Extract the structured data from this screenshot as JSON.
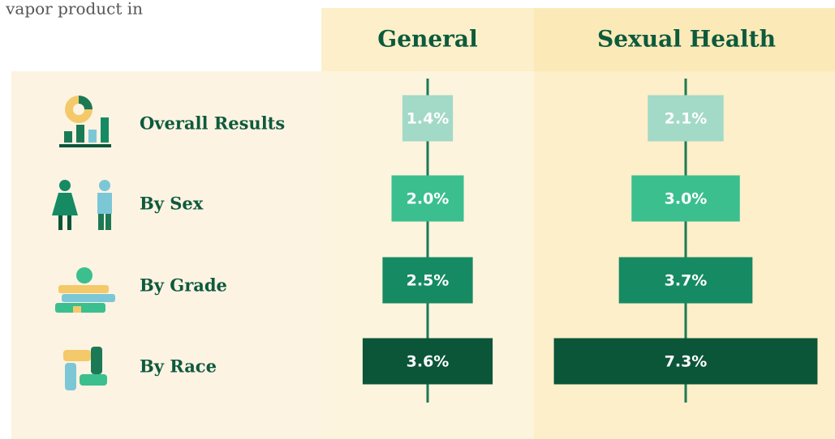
{
  "fragment": ": vapor product in",
  "chart_data": {
    "type": "bar",
    "categories": [
      "Overall Results",
      "By Sex",
      "By Grade",
      "By Race"
    ],
    "colors": [
      "#a3d9c7",
      "#3bbf8f",
      "#168a63",
      "#0b5539"
    ],
    "series": [
      {
        "name": "General",
        "values": [
          1.4,
          2.0,
          2.5,
          3.6
        ],
        "value_labels": [
          "1.4%",
          "2.0%",
          "2.5%",
          "3.6%"
        ]
      },
      {
        "name": "Sexual Health",
        "values": [
          2.1,
          3.0,
          3.7,
          7.3
        ],
        "value_labels": [
          "2.1%",
          "3.0%",
          "3.7%",
          "7.3%"
        ]
      }
    ]
  }
}
